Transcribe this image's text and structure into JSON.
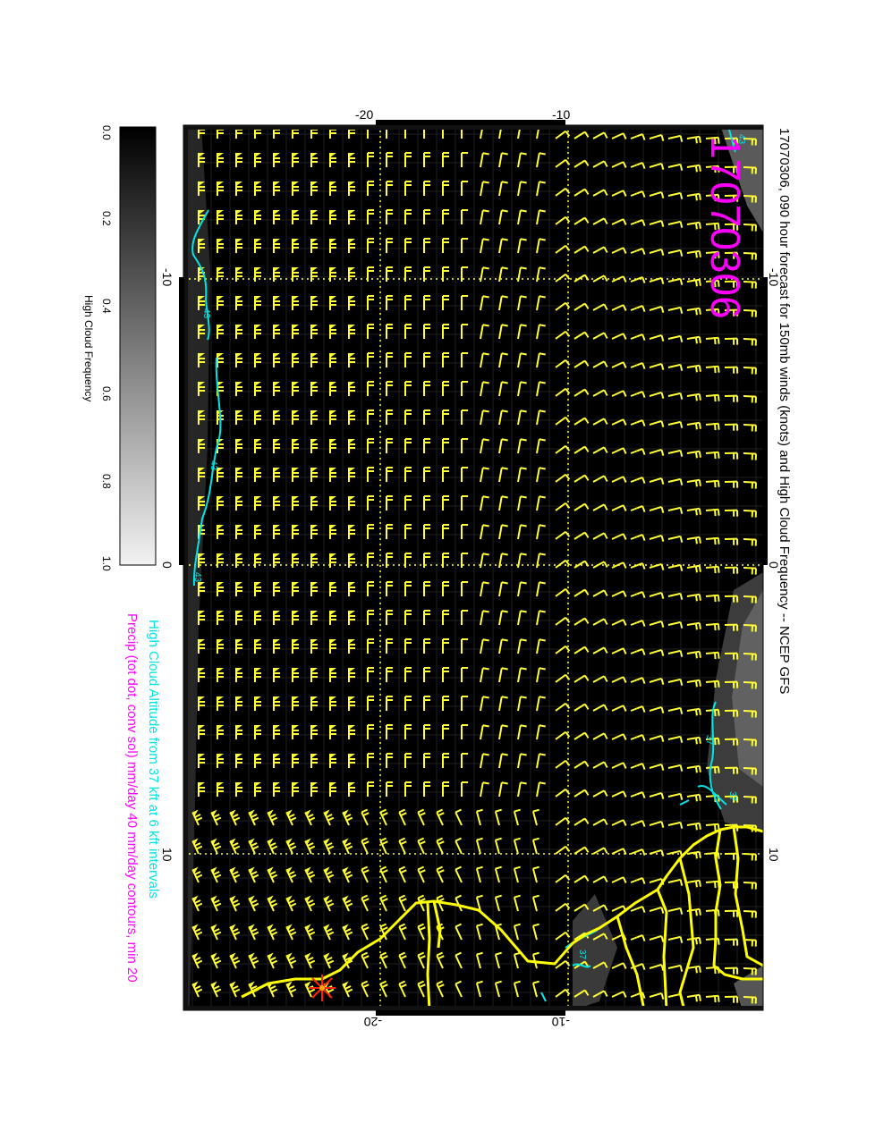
{
  "title": "17070306, 090 hour forecast for 150mb winds (knots) and High Cloud Frequency -- NCEP GFS",
  "stamp": "17070306",
  "legend_line_cyan": "High Cloud Altitude from 37 kft at 6 kft intervals",
  "legend_line_magenta": "Precip (tot dot, conv sol) mm/day 40 mm/day contours, min 20",
  "colorbar": {
    "label": "High Cloud Frequency",
    "ticks": [
      "0.0",
      "0.2",
      "0.4",
      "0.6",
      "0.8",
      "1.0"
    ]
  },
  "axes": {
    "top_left_ticks": [
      "-20",
      "-10"
    ],
    "top_right_ticks": [
      "-10",
      "0",
      "10"
    ],
    "bottom_ticks": [
      "-20",
      "-10"
    ],
    "left_ticks": [
      "-10",
      "0",
      "10"
    ]
  },
  "contour_labels": [
    "43",
    "43",
    "43",
    "43",
    "37",
    "37",
    "37"
  ],
  "colors": {
    "barb": "#ffff33",
    "contour": "#00e5e5",
    "precip": "#ff00ff",
    "coast": "#ffff00",
    "marker": "#ff2200"
  },
  "icons": {
    "storm_marker": "red-asterisk-icon"
  }
}
